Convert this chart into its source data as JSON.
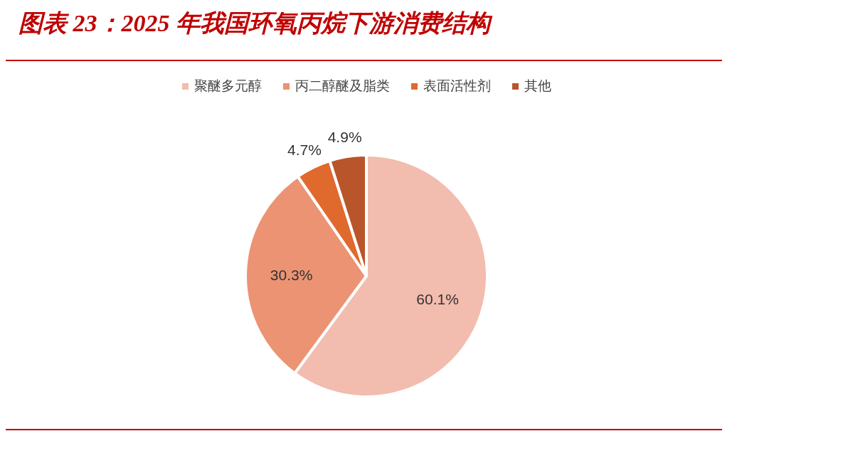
{
  "chart_data": {
    "type": "pie",
    "title": "图表 23：2025 年我国环氧丙烷下游消费结构",
    "categories": [
      "聚醚多元醇",
      "丙二醇醚及脂类",
      "表面活性剂",
      "其他"
    ],
    "values": [
      60.1,
      30.3,
      4.7,
      4.9
    ],
    "colors": [
      "#f2bcae",
      "#eb9373",
      "#e06a2e",
      "#b9552a"
    ],
    "value_labels": [
      "60.1%",
      "30.3%",
      "4.7%",
      "4.9%"
    ],
    "legend": "top"
  }
}
